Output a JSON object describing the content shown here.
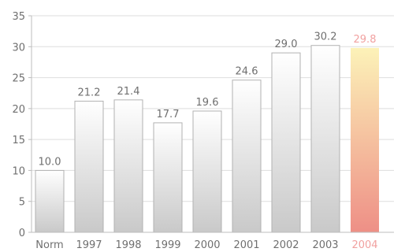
{
  "chart_data": {
    "type": "bar",
    "title": "",
    "xlabel": "",
    "ylabel": "",
    "categories": [
      "Norm",
      "1997",
      "1998",
      "1999",
      "2000",
      "2001",
      "2002",
      "2003",
      "2004"
    ],
    "values": [
      10.0,
      21.2,
      21.4,
      17.7,
      19.6,
      24.6,
      29.0,
      30.2,
      29.8
    ],
    "data_labels": [
      "10.0",
      "21.2",
      "21.4",
      "17.7",
      "19.6",
      "24.6",
      "29.0",
      "30.2",
      "29.8"
    ],
    "highlight_index": 8,
    "ylim": [
      0,
      35
    ],
    "yticks": [
      0,
      5,
      10,
      15,
      20,
      25,
      30,
      35
    ],
    "grid": true,
    "legend": "none",
    "colors": {
      "bar_top": "#ffffff",
      "bar_bottom": "#c9c9c9",
      "bar_border": "#b2b2b2",
      "highlight_top": "#fcf2b8",
      "highlight_bottom": "#ee8f86",
      "highlight_label": "#f1a1a0",
      "label": "#6f6f6f",
      "grid": "#dedede",
      "axis": "#bdbdbd"
    }
  }
}
